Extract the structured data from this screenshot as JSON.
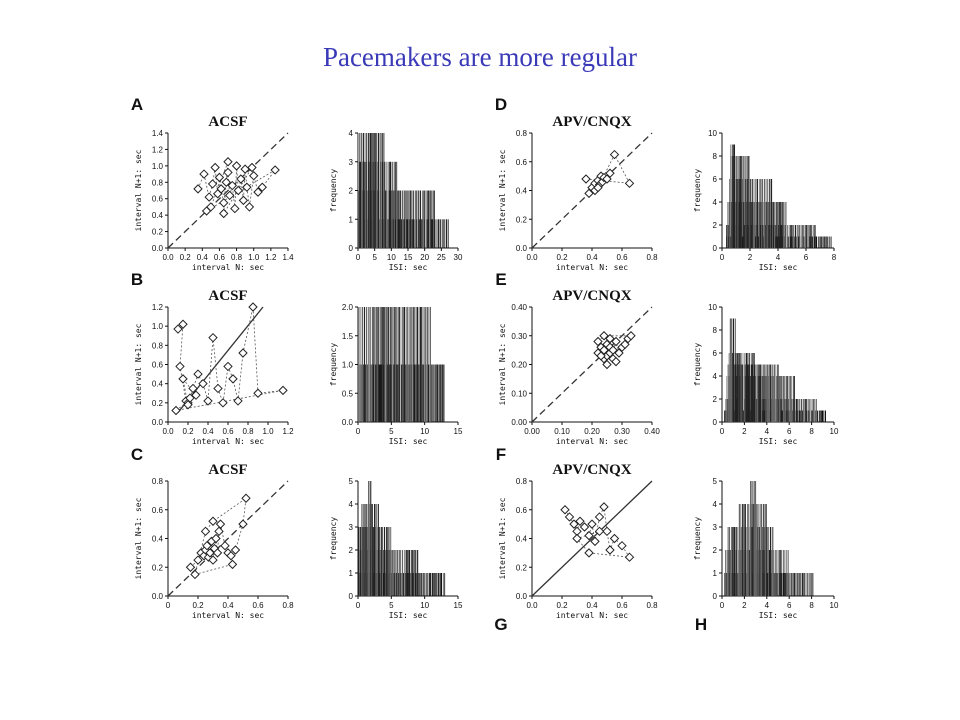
{
  "slide": {
    "title": "Pacemakers are more regular",
    "title_color": "#3a3ab8"
  },
  "chart_data": [
    {
      "label": "A",
      "type": "scatter",
      "title": "ACSF",
      "xlabel": "interval N: sec",
      "ylabel": "interval N+1: sec",
      "xlim": [
        0,
        1.4
      ],
      "ylim": [
        0,
        1.4
      ],
      "xticks": [
        "0.0",
        "0.2",
        "0.4",
        "0.6",
        "0.8",
        "1.0",
        "1.2",
        "1.4"
      ],
      "yticks": [
        "0.0",
        "0.2",
        "0.4",
        "0.6",
        "0.8",
        "1.0",
        "1.2",
        "1.4"
      ],
      "diagonal": "dashed",
      "connect_points": true,
      "points": [
        [
          0.35,
          0.72
        ],
        [
          0.42,
          0.9
        ],
        [
          0.48,
          0.62
        ],
        [
          0.52,
          0.78
        ],
        [
          0.55,
          0.98
        ],
        [
          0.58,
          0.66
        ],
        [
          0.6,
          0.86
        ],
        [
          0.62,
          0.72
        ],
        [
          0.65,
          0.55
        ],
        [
          0.68,
          0.8
        ],
        [
          0.7,
          0.92
        ],
        [
          0.72,
          0.64
        ],
        [
          0.75,
          0.76
        ],
        [
          0.78,
          0.48
        ],
        [
          0.8,
          1.0
        ],
        [
          0.82,
          0.7
        ],
        [
          0.85,
          0.84
        ],
        [
          0.88,
          0.58
        ],
        [
          0.9,
          0.96
        ],
        [
          0.92,
          0.74
        ],
        [
          0.95,
          0.5
        ],
        [
          1.0,
          0.88
        ],
        [
          1.05,
          0.68
        ],
        [
          1.1,
          0.74
        ],
        [
          1.25,
          0.95
        ],
        [
          0.45,
          0.45
        ],
        [
          0.5,
          0.5
        ],
        [
          0.7,
          1.05
        ],
        [
          0.65,
          0.42
        ],
        [
          0.98,
          0.98
        ]
      ]
    },
    {
      "label": "",
      "type": "bar",
      "title": "",
      "xlabel": "ISI: sec",
      "ylabel": "frequency",
      "xlim": [
        0,
        30
      ],
      "ylim": [
        0,
        4
      ],
      "xticks": [
        "0",
        "5",
        "10",
        "15",
        "20",
        "25",
        "30"
      ],
      "yticks": [
        "0",
        "1",
        "2",
        "3",
        "4"
      ],
      "levels": [
        {
          "from": 0,
          "to": 27,
          "height": 1
        },
        {
          "from": 0,
          "to": 23,
          "height": 2
        },
        {
          "from": 0,
          "to": 12,
          "height": 3
        },
        {
          "from": 0,
          "to": 8,
          "height": 4
        }
      ]
    },
    {
      "label": "D",
      "type": "scatter",
      "title": "APV/CNQX",
      "xlabel": "interval N: sec",
      "ylabel": "interval N+1: sec",
      "xlim": [
        0,
        0.8
      ],
      "ylim": [
        0,
        0.8
      ],
      "xticks": [
        "0.0",
        "0.2",
        "0.4",
        "0.6",
        "0.8"
      ],
      "yticks": [
        "0.0",
        "0.2",
        "0.4",
        "0.6",
        "0.8"
      ],
      "diagonal": "dashed",
      "connect_points": true,
      "points": [
        [
          0.38,
          0.38
        ],
        [
          0.4,
          0.42
        ],
        [
          0.42,
          0.45
        ],
        [
          0.44,
          0.47
        ],
        [
          0.45,
          0.44
        ],
        [
          0.46,
          0.5
        ],
        [
          0.47,
          0.46
        ],
        [
          0.48,
          0.49
        ],
        [
          0.5,
          0.48
        ],
        [
          0.52,
          0.52
        ],
        [
          0.42,
          0.4
        ],
        [
          0.44,
          0.42
        ],
        [
          0.55,
          0.65
        ],
        [
          0.65,
          0.45
        ],
        [
          0.36,
          0.48
        ]
      ]
    },
    {
      "label": "",
      "type": "bar",
      "title": "",
      "xlabel": "ISI: sec",
      "ylabel": "frequency",
      "xlim": [
        0,
        8
      ],
      "ylim": [
        0,
        10
      ],
      "xticks": [
        "0",
        "2",
        "4",
        "6",
        "8"
      ],
      "yticks": [
        "0",
        "2",
        "4",
        "6",
        "8",
        "10"
      ],
      "levels": [
        {
          "from": 0.3,
          "to": 7.8,
          "height": 1
        },
        {
          "from": 0.3,
          "to": 6.6,
          "height": 2
        },
        {
          "from": 0.4,
          "to": 4.6,
          "height": 4
        },
        {
          "from": 0.5,
          "to": 3.5,
          "height": 6
        },
        {
          "from": 0.6,
          "to": 2.0,
          "height": 8
        },
        {
          "from": 0.6,
          "to": 0.9,
          "height": 9
        }
      ]
    },
    {
      "label": "B",
      "type": "scatter",
      "title": "ACSF",
      "xlabel": "interval N: sec",
      "ylabel": "interval N+1: sec",
      "xlim": [
        0,
        1.2
      ],
      "ylim": [
        0,
        1.2
      ],
      "xticks": [
        "0.0",
        "0.2",
        "0.4",
        "0.6",
        "0.8",
        "1.0",
        "1.2"
      ],
      "yticks": [
        "0.0",
        "0.2",
        "0.4",
        "0.6",
        "0.8",
        "1.0",
        "1.2"
      ],
      "fit_line": "solid",
      "connect_points": true,
      "points": [
        [
          0.1,
          0.97
        ],
        [
          0.15,
          1.02
        ],
        [
          0.12,
          0.58
        ],
        [
          0.18,
          0.22
        ],
        [
          0.2,
          0.2
        ],
        [
          0.22,
          0.25
        ],
        [
          0.25,
          0.35
        ],
        [
          0.3,
          0.5
        ],
        [
          0.35,
          0.4
        ],
        [
          0.4,
          0.22
        ],
        [
          0.45,
          0.88
        ],
        [
          0.5,
          0.35
        ],
        [
          0.55,
          0.2
        ],
        [
          0.6,
          0.58
        ],
        [
          0.65,
          0.45
        ],
        [
          0.7,
          0.22
        ],
        [
          0.75,
          0.72
        ],
        [
          0.85,
          1.2
        ],
        [
          0.9,
          0.3
        ],
        [
          1.15,
          0.33
        ],
        [
          0.08,
          0.12
        ],
        [
          0.28,
          0.28
        ],
        [
          0.15,
          0.45
        ],
        [
          0.2,
          0.18
        ]
      ]
    },
    {
      "label": "",
      "type": "bar",
      "title": "",
      "xlabel": "ISI: sec",
      "ylabel": "frequency",
      "xlim": [
        0,
        15
      ],
      "ylim": [
        0,
        2
      ],
      "xticks": [
        "0",
        "5",
        "10",
        "15"
      ],
      "yticks": [
        "0.0",
        "0.5",
        "1.0",
        "1.5",
        "2.0"
      ],
      "levels": [
        {
          "from": 0,
          "to": 12.8,
          "height": 1
        },
        {
          "from": 0,
          "to": 11,
          "height": 2
        }
      ]
    },
    {
      "label": "E",
      "type": "scatter",
      "title": "APV/CNQX",
      "xlabel": "interval N: sec",
      "ylabel": "interval N+1: sec",
      "xlim": [
        0,
        0.4
      ],
      "ylim": [
        0,
        0.4
      ],
      "xticks": [
        "0.00",
        "0.10",
        "0.20",
        "0.30",
        "0.40"
      ],
      "yticks": [
        "0.00",
        "0.10",
        "0.20",
        "0.30",
        "0.40"
      ],
      "diagonal": "dashed",
      "connect_points": true,
      "points": [
        [
          0.22,
          0.24
        ],
        [
          0.23,
          0.26
        ],
        [
          0.24,
          0.22
        ],
        [
          0.24,
          0.25
        ],
        [
          0.25,
          0.23
        ],
        [
          0.25,
          0.27
        ],
        [
          0.26,
          0.24
        ],
        [
          0.26,
          0.26
        ],
        [
          0.27,
          0.22
        ],
        [
          0.27,
          0.25
        ],
        [
          0.28,
          0.28
        ],
        [
          0.29,
          0.24
        ],
        [
          0.3,
          0.26
        ],
        [
          0.31,
          0.27
        ],
        [
          0.32,
          0.29
        ],
        [
          0.33,
          0.3
        ],
        [
          0.24,
          0.3
        ],
        [
          0.22,
          0.28
        ],
        [
          0.25,
          0.2
        ],
        [
          0.28,
          0.21
        ],
        [
          0.23,
          0.23
        ],
        [
          0.26,
          0.29
        ]
      ]
    },
    {
      "label": "",
      "type": "bar",
      "title": "",
      "xlabel": "ISI: sec",
      "ylabel": "frequency",
      "xlim": [
        0,
        10
      ],
      "ylim": [
        0,
        10
      ],
      "xticks": [
        "0",
        "2",
        "4",
        "6",
        "8",
        "10"
      ],
      "yticks": [
        "0",
        "2",
        "4",
        "6",
        "8",
        "10"
      ],
      "levels": [
        {
          "from": 0.2,
          "to": 9.2,
          "height": 1
        },
        {
          "from": 0.3,
          "to": 8.5,
          "height": 2
        },
        {
          "from": 0.4,
          "to": 6.5,
          "height": 4
        },
        {
          "from": 0.5,
          "to": 5.0,
          "height": 5
        },
        {
          "from": 0.6,
          "to": 3.0,
          "height": 6
        },
        {
          "from": 0.7,
          "to": 1.2,
          "height": 9
        }
      ]
    },
    {
      "label": "C",
      "type": "scatter",
      "title": "ACSF",
      "xlabel": "interval N: sec",
      "ylabel": "interval N+1: sec",
      "xlim": [
        0,
        0.8
      ],
      "ylim": [
        0,
        0.8
      ],
      "xticks": [
        "0",
        "0.2",
        "0.4",
        "0.6",
        "0.8"
      ],
      "yticks": [
        "0.0",
        "0.2",
        "0.4",
        "0.6",
        "0.8"
      ],
      "diagonal": "dashed",
      "connect_points": true,
      "points": [
        [
          0.15,
          0.2
        ],
        [
          0.2,
          0.25
        ],
        [
          0.22,
          0.3
        ],
        [
          0.24,
          0.28
        ],
        [
          0.25,
          0.32
        ],
        [
          0.26,
          0.35
        ],
        [
          0.27,
          0.27
        ],
        [
          0.28,
          0.3
        ],
        [
          0.29,
          0.38
        ],
        [
          0.3,
          0.25
        ],
        [
          0.31,
          0.33
        ],
        [
          0.32,
          0.4
        ],
        [
          0.33,
          0.3
        ],
        [
          0.34,
          0.45
        ],
        [
          0.35,
          0.5
        ],
        [
          0.38,
          0.35
        ],
        [
          0.4,
          0.3
        ],
        [
          0.42,
          0.28
        ],
        [
          0.45,
          0.32
        ],
        [
          0.5,
          0.5
        ],
        [
          0.52,
          0.68
        ],
        [
          0.3,
          0.52
        ],
        [
          0.25,
          0.45
        ],
        [
          0.18,
          0.15
        ],
        [
          0.43,
          0.22
        ]
      ]
    },
    {
      "label": "",
      "type": "bar",
      "title": "",
      "xlabel": "ISI: sec",
      "ylabel": "frequency",
      "xlim": [
        0,
        15
      ],
      "ylim": [
        0,
        5
      ],
      "xticks": [
        "0",
        "5",
        "10",
        "15"
      ],
      "yticks": [
        "0",
        "1",
        "2",
        "3",
        "4",
        "5"
      ],
      "levels": [
        {
          "from": 0,
          "to": 13,
          "height": 1
        },
        {
          "from": 0,
          "to": 9,
          "height": 2
        },
        {
          "from": 0,
          "to": 5,
          "height": 3
        },
        {
          "from": 0.5,
          "to": 3,
          "height": 4
        },
        {
          "from": 1.5,
          "to": 2,
          "height": 5
        }
      ]
    },
    {
      "label": "F",
      "type": "scatter",
      "title": "APV/CNQX",
      "xlabel": "interval N: sec",
      "ylabel": "interval N+1: sec",
      "xlim": [
        0,
        0.8
      ],
      "ylim": [
        0,
        0.8
      ],
      "xticks": [
        "0.0",
        "0.2",
        "0.4",
        "0.6",
        "0.8"
      ],
      "yticks": [
        "0.0",
        "0.2",
        "0.4",
        "0.6",
        "0.8"
      ],
      "diagonal": "solid",
      "connect_points": true,
      "points": [
        [
          0.22,
          0.6
        ],
        [
          0.25,
          0.55
        ],
        [
          0.28,
          0.5
        ],
        [
          0.3,
          0.45
        ],
        [
          0.32,
          0.52
        ],
        [
          0.35,
          0.48
        ],
        [
          0.38,
          0.42
        ],
        [
          0.4,
          0.5
        ],
        [
          0.42,
          0.38
        ],
        [
          0.45,
          0.55
        ],
        [
          0.48,
          0.62
        ],
        [
          0.5,
          0.45
        ],
        [
          0.52,
          0.32
        ],
        [
          0.55,
          0.4
        ],
        [
          0.6,
          0.35
        ],
        [
          0.65,
          0.27
        ],
        [
          0.38,
          0.3
        ],
        [
          0.3,
          0.4
        ],
        [
          0.45,
          0.45
        ]
      ]
    },
    {
      "label": "",
      "type": "bar",
      "title": "",
      "xlabel": "ISI: sec",
      "ylabel": "frequency",
      "xlim": [
        0,
        10
      ],
      "ylim": [
        0,
        5
      ],
      "xticks": [
        "0",
        "2",
        "4",
        "6",
        "8",
        "10"
      ],
      "yticks": [
        "0",
        "1",
        "2",
        "3",
        "4",
        "5"
      ],
      "levels": [
        {
          "from": 0.2,
          "to": 8.2,
          "height": 1
        },
        {
          "from": 0.3,
          "to": 6,
          "height": 2
        },
        {
          "from": 0.5,
          "to": 4.5,
          "height": 3
        },
        {
          "from": 1.5,
          "to": 4,
          "height": 4
        },
        {
          "from": 2.5,
          "to": 3,
          "height": 5
        }
      ]
    }
  ],
  "extra_labels": [
    "G",
    "H"
  ]
}
